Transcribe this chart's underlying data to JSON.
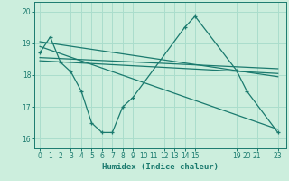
{
  "background_color": "#cceedd",
  "grid_color": "#aaddcc",
  "line_color": "#1a7a6e",
  "xlabel": "Humidex (Indice chaleur)",
  "ylim": [
    15.7,
    20.3
  ],
  "xlim": [
    -0.5,
    23.8
  ],
  "yticks": [
    16,
    17,
    18,
    19,
    20
  ],
  "xticks": [
    0,
    1,
    2,
    3,
    4,
    5,
    6,
    7,
    8,
    9,
    10,
    11,
    12,
    13,
    14,
    15,
    19,
    20,
    21,
    23
  ],
  "line1_x": [
    0,
    1,
    2,
    3,
    4,
    5,
    6,
    7,
    8,
    9,
    14,
    15,
    19,
    20,
    23
  ],
  "line1_y": [
    18.7,
    19.2,
    18.4,
    18.1,
    17.5,
    16.5,
    16.2,
    16.2,
    17.0,
    17.3,
    19.5,
    19.85,
    18.15,
    17.5,
    16.2
  ],
  "line2_x": [
    0,
    23
  ],
  "line2_y": [
    19.05,
    17.95
  ],
  "line3_x": [
    0,
    23
  ],
  "line3_y": [
    18.55,
    18.2
  ],
  "line4_x": [
    0,
    23
  ],
  "line4_y": [
    18.45,
    18.05
  ],
  "line5_x": [
    0,
    23
  ],
  "line5_y": [
    18.9,
    16.3
  ]
}
